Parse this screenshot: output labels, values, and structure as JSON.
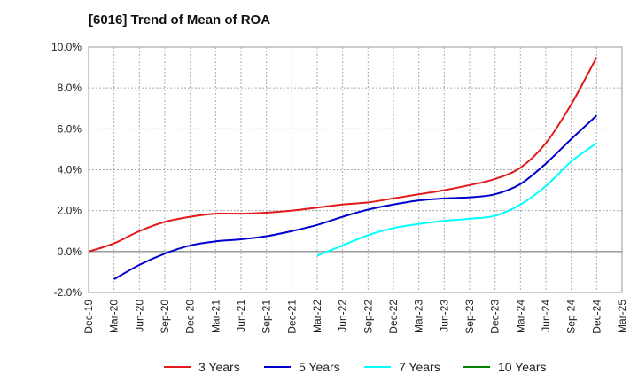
{
  "chart_data": {
    "type": "line",
    "title": "[6016]  Trend of Mean of ROA",
    "xlabel": "",
    "ylabel": "",
    "ylim": [
      -2.0,
      10.0
    ],
    "yticks": [
      -2.0,
      0.0,
      2.0,
      4.0,
      6.0,
      8.0,
      10.0
    ],
    "y_tick_labels": [
      "-2.0%",
      "0.0%",
      "2.0%",
      "4.0%",
      "6.0%",
      "8.0%",
      "10.0%"
    ],
    "x_tick_labels": [
      "Dec-19",
      "Mar-20",
      "Jun-20",
      "Sep-20",
      "Dec-20",
      "Mar-21",
      "Jun-21",
      "Sep-21",
      "Dec-21",
      "Mar-22",
      "Jun-22",
      "Sep-22",
      "Dec-22",
      "Mar-23",
      "Jun-23",
      "Sep-23",
      "Dec-23",
      "Mar-24",
      "Jun-24",
      "Sep-24",
      "Dec-24",
      "Mar-25"
    ],
    "grid": true,
    "legend_position": "bottom",
    "series": [
      {
        "name": "3 Years",
        "color": "#e31a1c",
        "values": [
          0.0,
          0.4,
          1.0,
          1.45,
          1.7,
          1.85,
          1.85,
          1.9,
          2.0,
          2.15,
          2.3,
          2.4,
          2.6,
          2.8,
          3.0,
          3.25,
          3.55,
          4.1,
          5.3,
          7.2,
          9.5,
          null
        ]
      },
      {
        "name": "5 Years",
        "color": "#0000cc",
        "values": [
          null,
          -1.35,
          -0.65,
          -0.1,
          0.3,
          0.5,
          0.6,
          0.75,
          1.0,
          1.3,
          1.7,
          2.05,
          2.3,
          2.5,
          2.6,
          2.65,
          2.8,
          3.3,
          4.3,
          5.5,
          6.65,
          null
        ]
      },
      {
        "name": "7 Years",
        "color": "#00ffff",
        "values": [
          null,
          null,
          null,
          null,
          null,
          null,
          null,
          null,
          null,
          -0.2,
          0.3,
          0.8,
          1.15,
          1.35,
          1.5,
          1.6,
          1.75,
          2.3,
          3.2,
          4.4,
          5.3,
          null
        ]
      },
      {
        "name": "10 Years",
        "color": "#008000",
        "values": [
          null,
          null,
          null,
          null,
          null,
          null,
          null,
          null,
          null,
          null,
          null,
          null,
          null,
          null,
          null,
          null,
          null,
          null,
          null,
          null,
          null,
          null
        ]
      }
    ]
  }
}
